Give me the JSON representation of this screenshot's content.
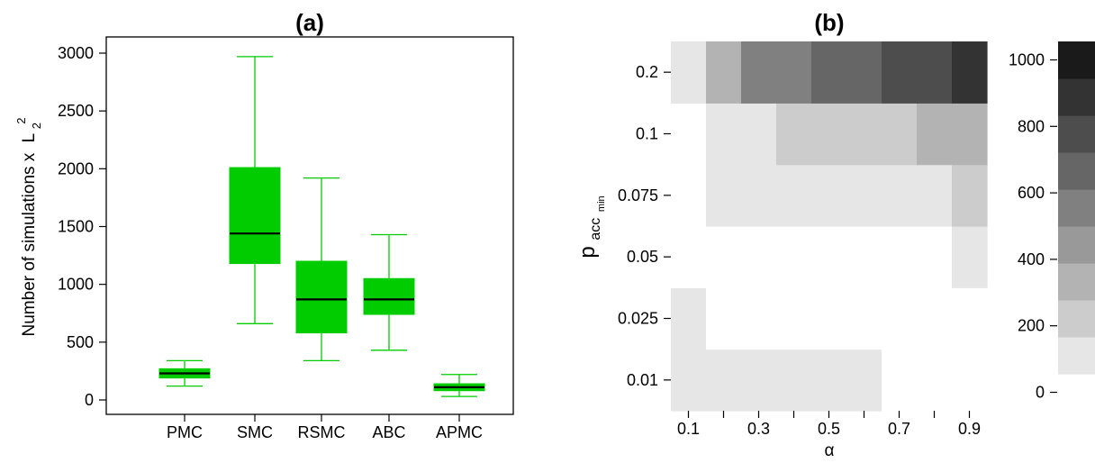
{
  "chart_data": [
    {
      "type": "boxplot",
      "title": "(a)",
      "ylabel": "Number of simulations x",
      "ylabel_sym": "L",
      "ylabel_sup": "2",
      "ylabel_sub": "2",
      "ylim": [
        0,
        3000
      ],
      "yticks": [
        0,
        500,
        1000,
        1500,
        2000,
        2500,
        3000
      ],
      "box_color": "#00cc00",
      "median_color": "#000000",
      "categories": [
        "PMC",
        "SMC",
        "RSMC",
        "ABC",
        "APMC"
      ],
      "boxes": [
        {
          "category": "PMC",
          "whisker_low": 120,
          "q1": 190,
          "median": 230,
          "q3": 270,
          "whisker_high": 340
        },
        {
          "category": "SMC",
          "whisker_low": 660,
          "q1": 1180,
          "median": 1440,
          "q3": 2010,
          "whisker_high": 2970
        },
        {
          "category": "RSMC",
          "whisker_low": 340,
          "q1": 580,
          "median": 870,
          "q3": 1200,
          "whisker_high": 1920
        },
        {
          "category": "ABC",
          "whisker_low": 430,
          "q1": 740,
          "median": 870,
          "q3": 1050,
          "whisker_high": 1430
        },
        {
          "category": "APMC",
          "whisker_low": 30,
          "q1": 80,
          "median": 110,
          "q3": 140,
          "whisker_high": 220
        }
      ]
    },
    {
      "type": "heatmap",
      "title": "(b)",
      "xlabel": "α",
      "ylabel_main": "p",
      "ylabel_sub1": "acc",
      "ylabel_sub2": "min",
      "x_values": [
        0.1,
        0.2,
        0.3,
        0.4,
        0.5,
        0.6,
        0.7,
        0.8,
        0.9
      ],
      "x_tick_labels": [
        "0.1",
        "0.3",
        "0.5",
        "0.7",
        "0.9"
      ],
      "y_values": [
        0.01,
        0.025,
        0.05,
        0.075,
        0.1,
        0.2
      ],
      "y_tick_labels": [
        "0.01",
        "0.025",
        "0.05",
        "0.075",
        "0.1",
        "0.2"
      ],
      "z_rows": [
        [
          100,
          100,
          100,
          100,
          100,
          100,
          0,
          0,
          0
        ],
        [
          100,
          0,
          0,
          0,
          0,
          0,
          0,
          0,
          0
        ],
        [
          0,
          0,
          0,
          0,
          0,
          0,
          0,
          0,
          100
        ],
        [
          0,
          100,
          100,
          100,
          100,
          100,
          100,
          100,
          200
        ],
        [
          0,
          100,
          100,
          200,
          200,
          200,
          200,
          300,
          300
        ],
        [
          100,
          300,
          500,
          500,
          600,
          600,
          700,
          700,
          800
        ]
      ],
      "colorbar": {
        "ticks": [
          0,
          200,
          400,
          600,
          800,
          1000
        ],
        "levels": [
          0,
          100,
          200,
          300,
          400,
          500,
          600,
          700,
          800,
          900,
          1000
        ],
        "colors": [
          "#ffffff",
          "#e6e6e6",
          "#cccccc",
          "#b3b3b3",
          "#999999",
          "#808080",
          "#666666",
          "#4d4d4d",
          "#333333",
          "#1a1a1a"
        ]
      }
    }
  ]
}
